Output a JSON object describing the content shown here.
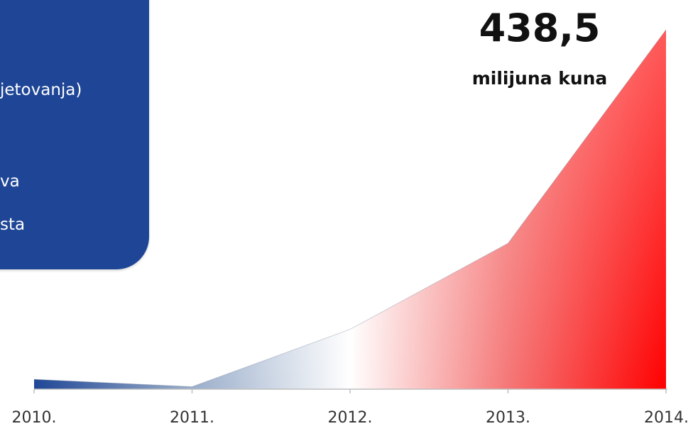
{
  "panel": {
    "lines": [
      "jetovanja)",
      "va",
      "sta"
    ]
  },
  "headline": {
    "value": "438,5",
    "unit": "milijuna kuna"
  },
  "chart_data": {
    "type": "area",
    "categories": [
      "2010.",
      "2011.",
      "2012.",
      "2013.",
      "2014."
    ],
    "series": [
      {
        "values": [
          12,
          3,
          73,
          178,
          438.5
        ]
      }
    ],
    "ylim": [
      0,
      438.5
    ],
    "grid": false,
    "colors": {
      "start": "#1f4696",
      "middle": "#ffffff",
      "end": "#ff0000",
      "axis": "#bfbfbf"
    }
  }
}
